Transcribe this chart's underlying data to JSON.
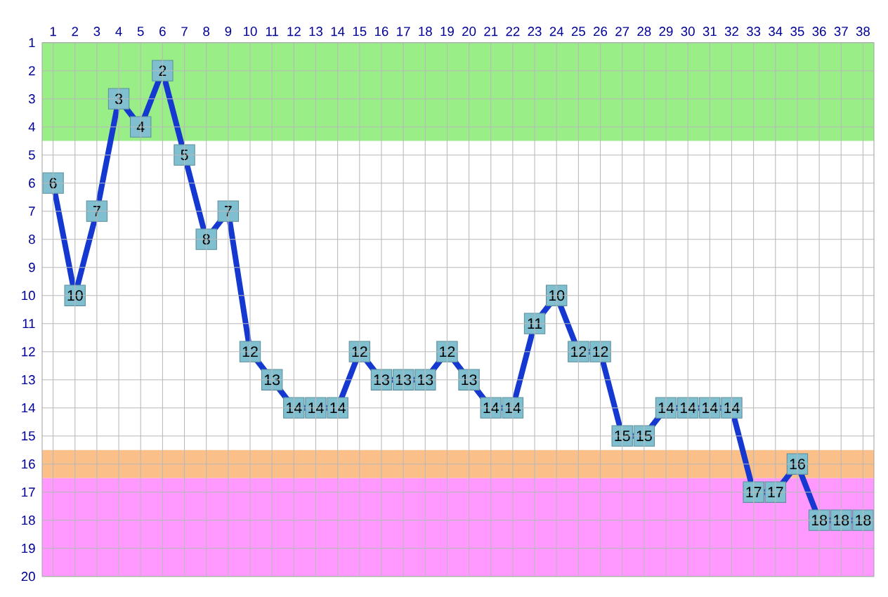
{
  "chart_data": {
    "type": "line",
    "x": [
      1,
      2,
      3,
      4,
      5,
      6,
      7,
      8,
      9,
      10,
      11,
      12,
      13,
      14,
      15,
      16,
      17,
      18,
      19,
      20,
      21,
      22,
      23,
      24,
      25,
      26,
      27,
      28,
      29,
      30,
      31,
      32,
      33,
      34,
      35,
      36,
      37,
      38
    ],
    "values": [
      6,
      10,
      7,
      3,
      4,
      2,
      5,
      8,
      7,
      12,
      13,
      14,
      14,
      14,
      12,
      13,
      13,
      13,
      12,
      13,
      14,
      14,
      11,
      10,
      12,
      12,
      15,
      15,
      14,
      14,
      14,
      14,
      17,
      17,
      16,
      18,
      18,
      18
    ],
    "color": "#1438d0",
    "marker": "square",
    "line_style": "solid",
    "data_labels": true,
    "grid": true,
    "xlim": [
      0.5,
      38.5
    ],
    "xticks": [
      1,
      2,
      3,
      4,
      5,
      6,
      7,
      8,
      9,
      10,
      11,
      12,
      13,
      14,
      15,
      16,
      17,
      18,
      19,
      20,
      21,
      22,
      23,
      24,
      25,
      26,
      27,
      28,
      29,
      30,
      31,
      32,
      33,
      34,
      35,
      36,
      37,
      38
    ],
    "ylim": [
      20,
      1
    ],
    "yticks": [
      1,
      2,
      3,
      4,
      5,
      6,
      7,
      8,
      9,
      10,
      11,
      12,
      13,
      14,
      15,
      16,
      17,
      18,
      19,
      20
    ],
    "bands": [
      {
        "axis": "y",
        "from": 1,
        "to": 4.5,
        "color": "#99ee88"
      },
      {
        "axis": "y",
        "from": 15.5,
        "to": 16.5,
        "color": "#fbbf8a"
      },
      {
        "axis": "y",
        "from": 16.5,
        "to": 20,
        "color": "#ff99ff"
      }
    ]
  }
}
